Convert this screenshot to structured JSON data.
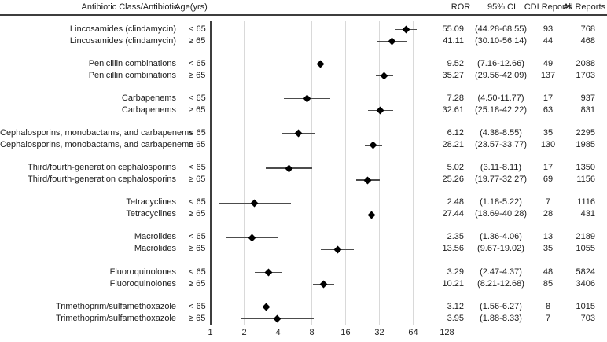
{
  "figure": {
    "header": {
      "class_col": "Antibiotic Class/Antibiotic",
      "age_col": "Age(yrs)",
      "ror_col": "ROR",
      "ci_col": "95% CI",
      "cdi_col": "CDI Reports",
      "all_col": "All Reports"
    }
  },
  "colors": {
    "text": "#1d1d1d",
    "axis": "#3d3d3d",
    "gridline": "#d9d9d9",
    "ci_line": "#4c4c4c",
    "marker": "#000000",
    "background": "#ffffff"
  },
  "chart_data": {
    "type": "scatter",
    "variant": "forest_plot",
    "title": "",
    "xlabel": "",
    "ylabel": "",
    "x_scale": "log2",
    "xlim": [
      1,
      128
    ],
    "x_ticks": [
      1,
      2,
      4,
      8,
      16,
      32,
      64,
      128
    ],
    "grid": "vertical gridlines at each power of 2",
    "legend": "none",
    "rows": [
      {
        "class": "Lincosamides (clindamycin)",
        "age": "< 65",
        "ror": "55.09",
        "ci": "(44.28-68.55)",
        "ci_low": 44.28,
        "ci_high": 68.55,
        "cdi": "93",
        "all": "768"
      },
      {
        "class": "Lincosamides (clindamycin)",
        "age": "≥ 65",
        "ror": "41.11",
        "ci": "(30.10-56.14)",
        "ci_low": 30.1,
        "ci_high": 56.14,
        "cdi": "44",
        "all": "468"
      },
      {
        "class": "Penicillin combinations",
        "age": "< 65",
        "ror": "9.52",
        "ci": "(7.16-12.66)",
        "ci_low": 7.16,
        "ci_high": 12.66,
        "cdi": "49",
        "all": "2088"
      },
      {
        "class": "Penicillin combinations",
        "age": "≥ 65",
        "ror": "35.27",
        "ci": "(29.56-42.09)",
        "ci_low": 29.56,
        "ci_high": 42.09,
        "cdi": "137",
        "all": "1703"
      },
      {
        "class": "Carbapenems",
        "age": "< 65",
        "ror": "7.28",
        "ci": "(4.50-11.77)",
        "ci_low": 4.5,
        "ci_high": 11.77,
        "cdi": "17",
        "all": "937"
      },
      {
        "class": "Carbapenems",
        "age": "≥ 65",
        "ror": "32.61",
        "ci": "(25.18-42.22)",
        "ci_low": 25.18,
        "ci_high": 42.22,
        "cdi": "63",
        "all": "831"
      },
      {
        "class": "Cephalosporins, monobactams, and carbapenems",
        "age": "< 65",
        "ror": "6.12",
        "ci": "(4.38-8.55)",
        "ci_low": 4.38,
        "ci_high": 8.55,
        "cdi": "35",
        "all": "2295"
      },
      {
        "class": "Cephalosporins, monobactams, and carbapenems",
        "age": "≥ 65",
        "ror": "28.21",
        "ci": "(23.57-33.77)",
        "ci_low": 23.57,
        "ci_high": 33.77,
        "cdi": "130",
        "all": "1985"
      },
      {
        "class": "Third/fourth-generation cephalosporins",
        "age": "< 65",
        "ror": "5.02",
        "ci": "(3.11-8.11)",
        "ci_low": 3.11,
        "ci_high": 8.11,
        "cdi": "17",
        "all": "1350"
      },
      {
        "class": "Third/fourth-generation cephalosporins",
        "age": "≥ 65",
        "ror": "25.26",
        "ci": "(19.77-32.27)",
        "ci_low": 19.77,
        "ci_high": 32.27,
        "cdi": "69",
        "all": "1156"
      },
      {
        "class": "Tetracyclines",
        "age": "< 65",
        "ror": "2.48",
        "ci": "(1.18-5.22)",
        "ci_low": 1.18,
        "ci_high": 5.22,
        "cdi": "7",
        "all": "1116"
      },
      {
        "class": "Tetracyclines",
        "age": "≥ 65",
        "ror": "27.44",
        "ci": "(18.69-40.28)",
        "ci_low": 18.69,
        "ci_high": 40.28,
        "cdi": "28",
        "all": "431"
      },
      {
        "class": "Macrolides",
        "age": "< 65",
        "ror": "2.35",
        "ci": "(1.36-4.06)",
        "ci_low": 1.36,
        "ci_high": 4.06,
        "cdi": "13",
        "all": "2189"
      },
      {
        "class": "Macrolides",
        "age": "≥ 65",
        "ror": "13.56",
        "ci": "(9.67-19.02)",
        "ci_low": 9.67,
        "ci_high": 19.02,
        "cdi": "35",
        "all": "1055"
      },
      {
        "class": "Fluoroquinolones",
        "age": "< 65",
        "ror": "3.29",
        "ci": "(2.47-4.37)",
        "ci_low": 2.47,
        "ci_high": 4.37,
        "cdi": "48",
        "all": "5824"
      },
      {
        "class": "Fluoroquinolones",
        "age": "≥ 65",
        "ror": "10.21",
        "ci": "(8.21-12.68)",
        "ci_low": 8.21,
        "ci_high": 12.68,
        "cdi": "85",
        "all": "3406"
      },
      {
        "class": "Trimethoprim/sulfamethoxazole",
        "age": "< 65",
        "ror": "3.12",
        "ci": "(1.56-6.27)",
        "ci_low": 1.56,
        "ci_high": 6.27,
        "cdi": "8",
        "all": "1015"
      },
      {
        "class": "Trimethoprim/sulfamethoxazole",
        "age": "≥ 65",
        "ror": "3.95",
        "ci": "(1.88-8.33)",
        "ci_low": 1.88,
        "ci_high": 8.33,
        "cdi": "7",
        "all": "703"
      }
    ]
  }
}
